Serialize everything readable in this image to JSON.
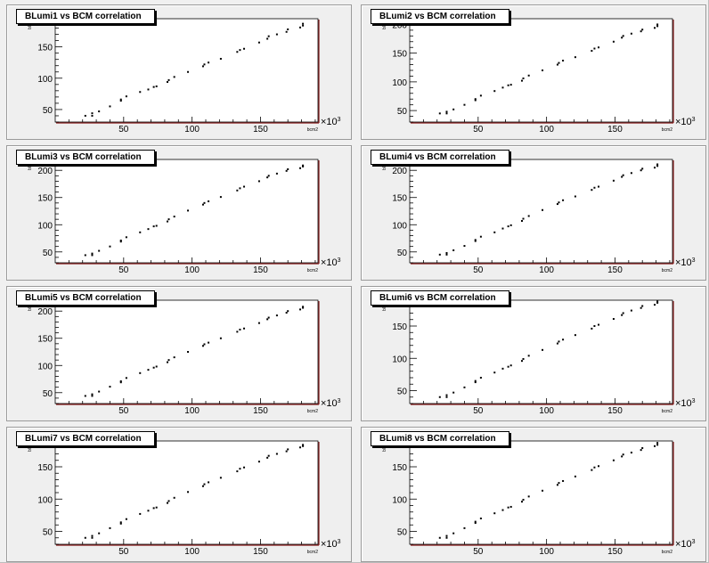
{
  "chart_data": [
    {
      "type": "scatter",
      "title": "BLumi1 vs BCM correlation",
      "xlabel": "bcm2",
      "ylabel": "blumi",
      "x_multiplier_label": "×10",
      "x_multiplier_exp": "3",
      "xlim": [
        0,
        192
      ],
      "ylim": [
        30,
        195
      ],
      "xticks": [
        50,
        100,
        150
      ],
      "yticks": [
        50,
        100,
        150
      ],
      "x": [
        22,
        27,
        27,
        32,
        40,
        48,
        48,
        52,
        62,
        68,
        72,
        74,
        82,
        83,
        87,
        97,
        108,
        109,
        112,
        121,
        133,
        135,
        138,
        149,
        155,
        156,
        162,
        169,
        170,
        179,
        181,
        181
      ],
      "y": [
        40,
        40,
        44,
        47,
        55,
        64,
        66,
        71,
        78,
        82,
        86,
        87,
        94,
        97,
        102,
        110,
        119,
        122,
        125,
        131,
        142,
        145,
        147,
        157,
        163,
        167,
        170,
        174,
        178,
        181,
        184,
        187
      ]
    },
    {
      "type": "scatter",
      "title": "BLumi2 vs BCM correlation",
      "xlabel": "bcm2",
      "ylabel": "blumi",
      "x_multiplier_label": "×10",
      "x_multiplier_exp": "3",
      "xlim": [
        0,
        192
      ],
      "ylim": [
        30,
        210
      ],
      "xticks": [
        50,
        100,
        150
      ],
      "yticks": [
        50,
        100,
        150,
        200
      ],
      "x": [
        22,
        27,
        27,
        32,
        40,
        48,
        48,
        52,
        62,
        68,
        72,
        74,
        82,
        83,
        87,
        97,
        108,
        109,
        112,
        121,
        133,
        135,
        138,
        149,
        155,
        156,
        162,
        169,
        170,
        179,
        181,
        181
      ],
      "y": [
        45,
        45,
        48,
        52,
        60,
        68,
        70,
        76,
        84,
        90,
        94,
        95,
        102,
        106,
        111,
        120,
        130,
        133,
        137,
        143,
        154,
        158,
        160,
        170,
        177,
        180,
        184,
        188,
        191,
        194,
        197,
        200
      ]
    },
    {
      "type": "scatter",
      "title": "BLumi3 vs BCM correlation",
      "xlabel": "bcm2",
      "ylabel": "blumi",
      "x_multiplier_label": "×10",
      "x_multiplier_exp": "3",
      "xlim": [
        0,
        192
      ],
      "ylim": [
        30,
        220
      ],
      "xticks": [
        50,
        100,
        150
      ],
      "yticks": [
        50,
        100,
        150,
        200
      ],
      "x": [
        22,
        27,
        27,
        32,
        40,
        48,
        48,
        52,
        62,
        68,
        72,
        74,
        82,
        83,
        87,
        97,
        108,
        109,
        112,
        121,
        133,
        135,
        138,
        149,
        155,
        156,
        162,
        169,
        170,
        179,
        181,
        181
      ],
      "y": [
        44,
        44,
        47,
        52,
        60,
        69,
        71,
        77,
        86,
        92,
        97,
        98,
        106,
        110,
        115,
        126,
        137,
        140,
        143,
        151,
        163,
        167,
        170,
        180,
        187,
        190,
        194,
        199,
        202,
        204,
        207,
        209
      ]
    },
    {
      "type": "scatter",
      "title": "BLumi4 vs BCM correlation",
      "xlabel": "bcm2",
      "ylabel": "blumi",
      "x_multiplier_label": "×10",
      "x_multiplier_exp": "3",
      "xlim": [
        0,
        192
      ],
      "ylim": [
        30,
        220
      ],
      "xticks": [
        50,
        100,
        150
      ],
      "yticks": [
        50,
        100,
        150,
        200
      ],
      "x": [
        22,
        27,
        27,
        32,
        40,
        48,
        48,
        52,
        62,
        68,
        72,
        74,
        82,
        83,
        87,
        97,
        108,
        109,
        112,
        121,
        133,
        135,
        138,
        149,
        155,
        156,
        162,
        169,
        170,
        179,
        181,
        181
      ],
      "y": [
        45,
        45,
        48,
        53,
        61,
        70,
        72,
        78,
        86,
        93,
        97,
        99,
        107,
        111,
        116,
        127,
        138,
        141,
        145,
        152,
        164,
        168,
        170,
        181,
        188,
        191,
        195,
        200,
        203,
        205,
        208,
        211
      ]
    },
    {
      "type": "scatter",
      "title": "BLumi5 vs BCM correlation",
      "xlabel": "bcm2",
      "ylabel": "blumi",
      "x_multiplier_label": "×10",
      "x_multiplier_exp": "3",
      "xlim": [
        0,
        192
      ],
      "ylim": [
        30,
        220
      ],
      "xticks": [
        50,
        100,
        150
      ],
      "yticks": [
        50,
        100,
        150,
        200
      ],
      "x": [
        22,
        27,
        27,
        32,
        40,
        48,
        48,
        52,
        62,
        68,
        72,
        74,
        82,
        83,
        87,
        97,
        108,
        109,
        112,
        121,
        133,
        135,
        138,
        149,
        155,
        156,
        162,
        169,
        170,
        179,
        181,
        181
      ],
      "y": [
        44,
        44,
        47,
        52,
        61,
        69,
        71,
        77,
        86,
        92,
        96,
        98,
        106,
        110,
        115,
        125,
        136,
        139,
        142,
        150,
        162,
        166,
        168,
        178,
        185,
        188,
        192,
        197,
        200,
        203,
        206,
        208
      ]
    },
    {
      "type": "scatter",
      "title": "BLumi6 vs BCM correlation",
      "xlabel": "bcm2",
      "ylabel": "blumi",
      "x_multiplier_label": "×10",
      "x_multiplier_exp": "3",
      "xlim": [
        0,
        192
      ],
      "ylim": [
        30,
        190
      ],
      "xticks": [
        50,
        100,
        150
      ],
      "yticks": [
        50,
        100,
        150
      ],
      "x": [
        22,
        27,
        27,
        32,
        40,
        48,
        48,
        52,
        62,
        68,
        72,
        74,
        82,
        83,
        87,
        97,
        108,
        109,
        112,
        121,
        133,
        135,
        138,
        149,
        155,
        156,
        162,
        169,
        170,
        179,
        181,
        181
      ],
      "y": [
        40,
        40,
        43,
        47,
        55,
        63,
        65,
        70,
        78,
        84,
        87,
        89,
        96,
        99,
        104,
        113,
        123,
        126,
        129,
        136,
        146,
        150,
        152,
        161,
        167,
        170,
        174,
        178,
        181,
        183,
        186,
        188
      ]
    },
    {
      "type": "scatter",
      "title": "BLumi7 vs BCM correlation",
      "xlabel": "bcm2",
      "ylabel": "blumi",
      "x_multiplier_label": "×10",
      "x_multiplier_exp": "3",
      "xlim": [
        0,
        192
      ],
      "ylim": [
        30,
        190
      ],
      "xticks": [
        50,
        100,
        150
      ],
      "yticks": [
        50,
        100,
        150
      ],
      "x": [
        22,
        27,
        27,
        32,
        40,
        48,
        48,
        52,
        62,
        68,
        72,
        74,
        82,
        83,
        87,
        97,
        108,
        109,
        112,
        121,
        133,
        135,
        138,
        149,
        155,
        156,
        162,
        169,
        170,
        179,
        181,
        181
      ],
      "y": [
        40,
        40,
        43,
        47,
        55,
        62,
        64,
        69,
        77,
        82,
        86,
        87,
        94,
        97,
        102,
        111,
        120,
        123,
        126,
        133,
        143,
        147,
        149,
        158,
        164,
        167,
        170,
        174,
        177,
        180,
        182,
        184
      ]
    },
    {
      "type": "scatter",
      "title": "BLumi8 vs BCM correlation",
      "xlabel": "bcm2",
      "ylabel": "blumi",
      "x_multiplier_label": "×10",
      "x_multiplier_exp": "3",
      "xlim": [
        0,
        192
      ],
      "ylim": [
        30,
        190
      ],
      "xticks": [
        50,
        100,
        150
      ],
      "yticks": [
        50,
        100,
        150
      ],
      "x": [
        22,
        27,
        27,
        32,
        40,
        48,
        48,
        52,
        62,
        68,
        72,
        74,
        82,
        83,
        87,
        97,
        108,
        109,
        112,
        121,
        133,
        135,
        138,
        149,
        155,
        156,
        162,
        169,
        170,
        179,
        181,
        181
      ],
      "y": [
        40,
        40,
        43,
        47,
        55,
        63,
        65,
        70,
        78,
        83,
        87,
        88,
        96,
        99,
        104,
        113,
        122,
        125,
        128,
        135,
        145,
        149,
        151,
        160,
        166,
        169,
        172,
        176,
        179,
        182,
        184,
        187
      ]
    }
  ]
}
